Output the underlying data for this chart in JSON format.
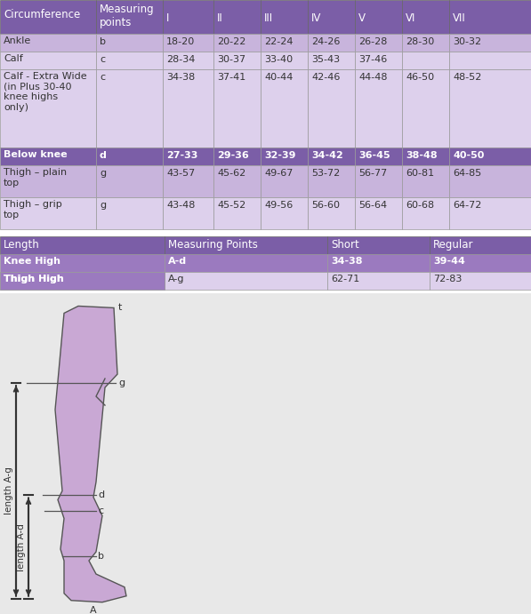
{
  "header_row": [
    "Circumference",
    "Measuring\npoints",
    "I",
    "II",
    "III",
    "IV",
    "V",
    "VI",
    "VII"
  ],
  "table1_rows": [
    [
      "Ankle",
      "b",
      "18-20",
      "20-22",
      "22-24",
      "24-26",
      "26-28",
      "28-30",
      "30-32"
    ],
    [
      "Calf",
      "c",
      "28-34",
      "30-37",
      "33-40",
      "35-43",
      "37-46",
      "",
      ""
    ],
    [
      "Calf - Extra Wide\n(in Plus 30-40\nknee highs\nonly)",
      "c",
      "34-38",
      "37-41",
      "40-44",
      "42-46",
      "44-48",
      "46-50",
      "48-52"
    ],
    [
      "Below knee",
      "d",
      "27-33",
      "29-36",
      "32-39",
      "34-42",
      "36-45",
      "38-48",
      "40-50"
    ],
    [
      "Thigh – plain\ntop",
      "g",
      "43-57",
      "45-62",
      "49-67",
      "53-72",
      "56-77",
      "60-81",
      "64-85"
    ],
    [
      "Thigh – grip\ntop",
      "g",
      "43-48",
      "45-52",
      "49-56",
      "56-60",
      "56-64",
      "60-68",
      "64-72"
    ]
  ],
  "header2_row": [
    "Length",
    "Measuring Points",
    "Short",
    "Regular"
  ],
  "table2_rows": [
    [
      "Knee High",
      "A-d",
      "34-38",
      "39-44"
    ],
    [
      "Thigh High",
      "A-g",
      "62-71",
      "72-83"
    ]
  ],
  "col_header_bg": "#7b5ea7",
  "col_header_fg": "#ffffff",
  "row_ankle_bg": "#c8b4dc",
  "row_calf_bg": "#ddd0ec",
  "row_calfxw_bg": "#ddd0ec",
  "row_below_bg": "#7b5ea7",
  "row_below_fg": "#ffffff",
  "row_thighp_bg": "#c8b4dc",
  "row_thighg_bg": "#ddd0ec",
  "row_fg": "#333333",
  "t2_header_bg": "#7b5ea7",
  "t2_header_fg": "#ffffff",
  "t2_knee_bg": "#9b7abf",
  "t2_knee_fg": "#ffffff",
  "t2_thigh_bg": "#ddd0ec",
  "t2_thigh_fg": "#333333",
  "diagram_bg": "#e8e8e8",
  "leg_fill": "#c9a8d4",
  "leg_stroke": "#555555"
}
